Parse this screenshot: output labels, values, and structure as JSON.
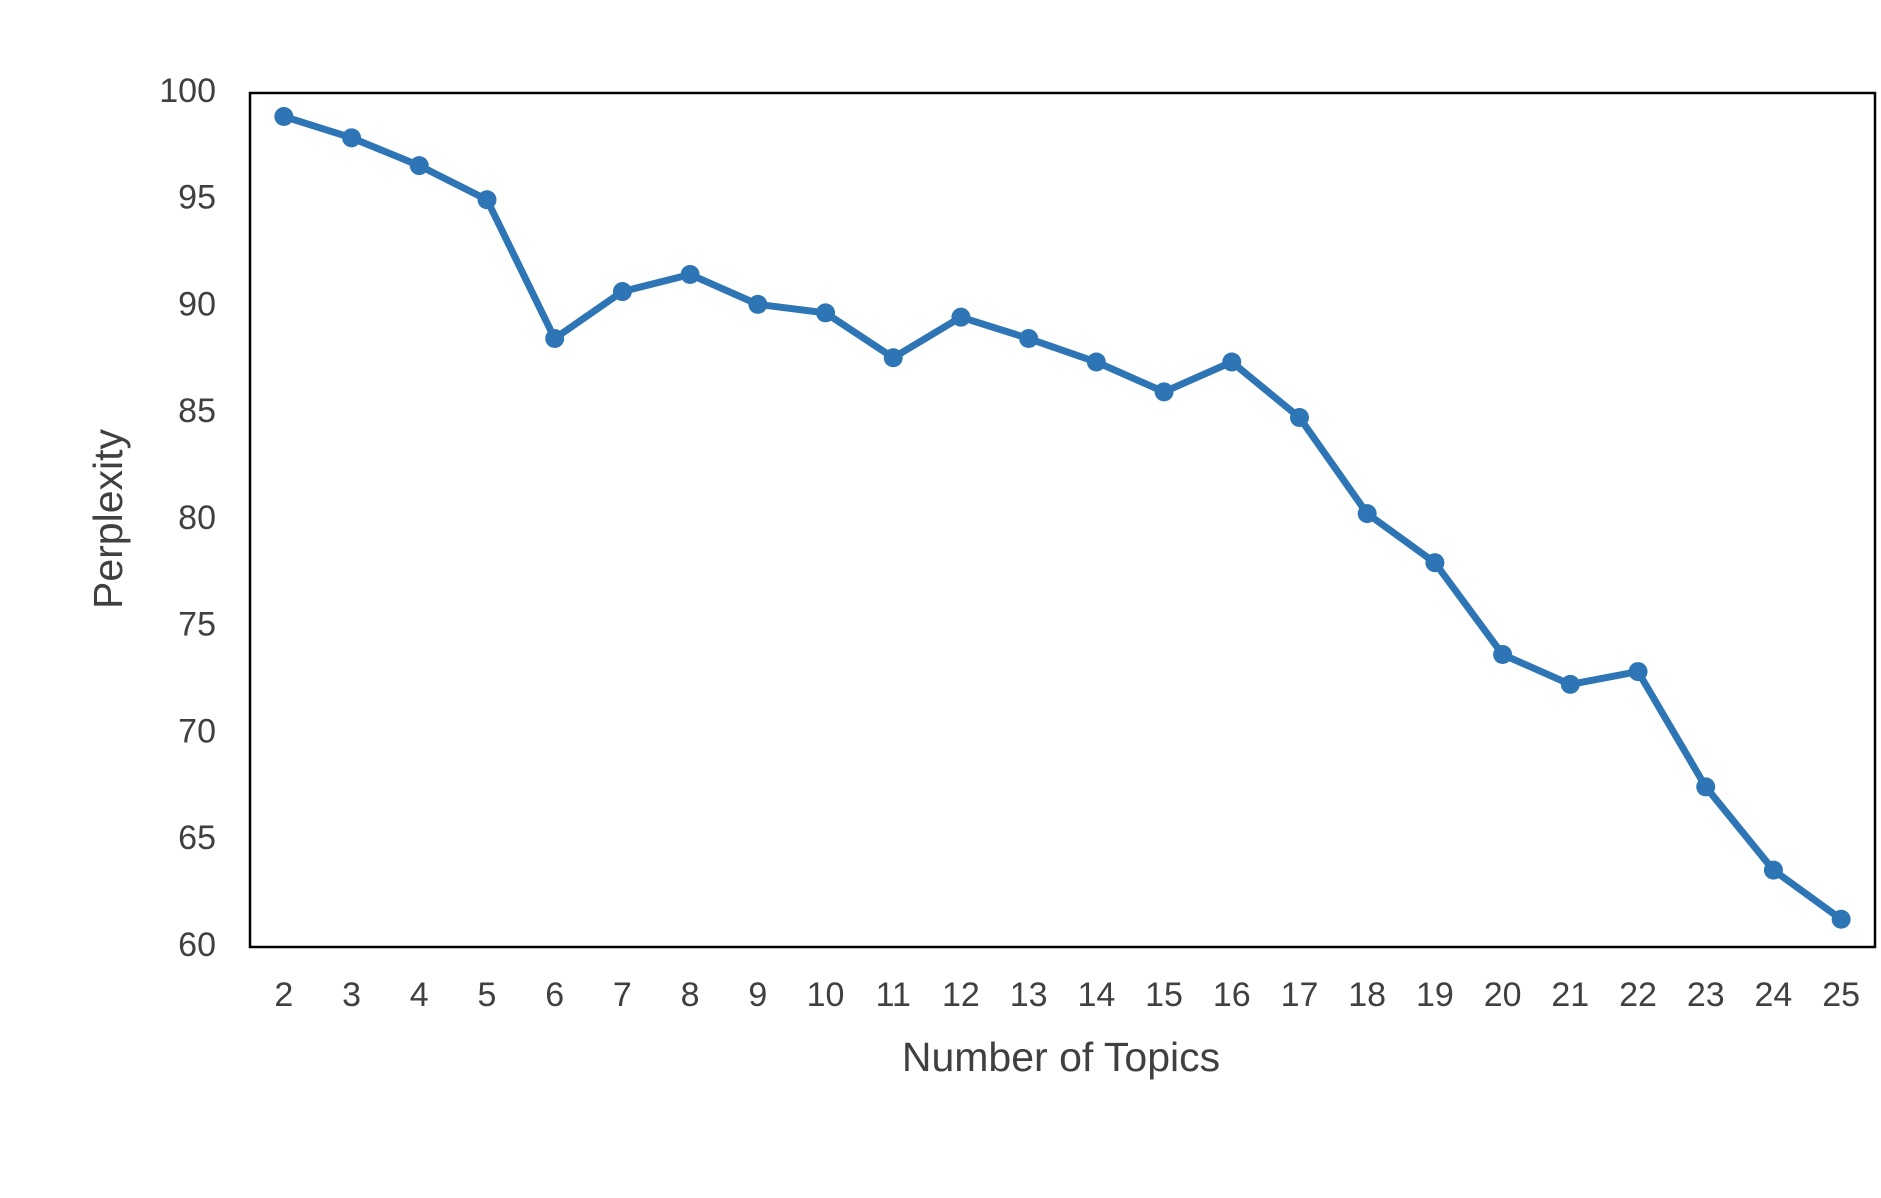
{
  "chart_data": {
    "type": "line",
    "x_label": "Number of Topics",
    "y_label": "Perplexity",
    "x": [
      2,
      3,
      4,
      5,
      6,
      7,
      8,
      9,
      10,
      11,
      12,
      13,
      14,
      15,
      16,
      17,
      18,
      19,
      20,
      21,
      22,
      23,
      24,
      25
    ],
    "series": [
      {
        "color": "#2e75b6",
        "values": [
          98.9,
          97.9,
          96.6,
          95.0,
          88.5,
          90.7,
          91.5,
          90.1,
          89.7,
          87.6,
          89.5,
          88.5,
          87.4,
          86.0,
          87.4,
          84.8,
          80.3,
          78.0,
          73.7,
          72.3,
          72.9,
          67.5,
          63.6,
          61.3
        ]
      }
    ],
    "xlim": [
      1.5,
      25.5
    ],
    "xticks": [
      2,
      3,
      4,
      5,
      6,
      7,
      8,
      9,
      10,
      11,
      12,
      13,
      14,
      15,
      16,
      17,
      18,
      19,
      20,
      21,
      22,
      23,
      24,
      25
    ],
    "ylim": [
      60,
      100
    ],
    "yticks": [
      60,
      65,
      70,
      75,
      80,
      85,
      90,
      95,
      100
    ],
    "grid": false
  }
}
